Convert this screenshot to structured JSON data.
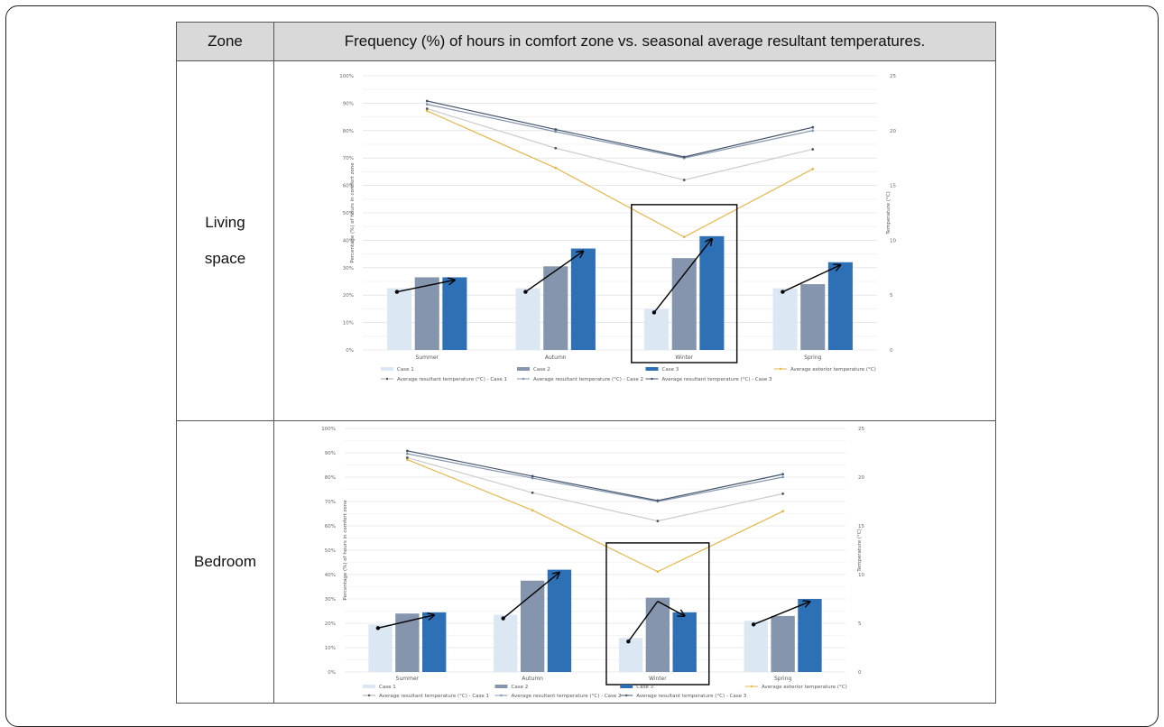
{
  "header": {
    "zone": "Zone",
    "description": "Frequency (%) of hours in comfort zone vs. seasonal average resultant temperatures."
  },
  "rows": [
    {
      "zone_lines": [
        "Living",
        "space"
      ]
    },
    {
      "zone_lines": [
        "Bedroom"
      ]
    }
  ],
  "chart_data": [
    {
      "type": "bar",
      "categories": [
        "Summer",
        "Autumn",
        "Winter",
        "Spring"
      ],
      "ylabel": "Percentage (%) of hours in comfort zone",
      "y2label": "Temperature (°C)",
      "ylim": [
        0,
        100
      ],
      "y2lim": [
        0,
        25
      ],
      "yticks": [
        "0%",
        "10%",
        "20%",
        "30%",
        "40%",
        "50%",
        "60%",
        "70%",
        "80%",
        "90%",
        "100%"
      ],
      "y2ticks": [
        "0",
        "5",
        "10",
        "15",
        "20",
        "25"
      ],
      "grid": true,
      "series": [
        {
          "name": "Case 1",
          "kind": "bar",
          "values": [
            22.5,
            22.5,
            15,
            22.5
          ],
          "color": "#dce7f4"
        },
        {
          "name": "Case 2",
          "kind": "bar",
          "values": [
            26.5,
            30.5,
            33.5,
            24
          ],
          "color": "#8595ad"
        },
        {
          "name": "Case 3",
          "kind": "bar",
          "values": [
            26.5,
            37,
            41.5,
            32
          ],
          "color": "#2e70b6"
        },
        {
          "name": "Average exterior temperature (°C)",
          "kind": "line",
          "axis": "right",
          "values": [
            21.8,
            16.6,
            10.3,
            16.5
          ],
          "color": "#e4b84d"
        },
        {
          "name": "Average resultant temperature (°C) - Case 1",
          "kind": "line",
          "axis": "right",
          "values": [
            22,
            18.4,
            15.5,
            18.3
          ],
          "color": "#cccccc"
        },
        {
          "name": "Average resultant temperature (°C) - Case 2",
          "kind": "line",
          "axis": "right",
          "values": [
            22.4,
            19.9,
            17.5,
            20
          ],
          "color": "#8595ad"
        },
        {
          "name": "Average resultant temperature (°C) - Case 3",
          "kind": "line",
          "axis": "right",
          "values": [
            22.7,
            20.1,
            17.6,
            20.3
          ],
          "color": "#44546a"
        }
      ],
      "highlight_category": "Winter"
    },
    {
      "type": "bar",
      "categories": [
        "Summer",
        "Autumn",
        "Winter",
        "Spring"
      ],
      "ylabel": "Percentage (%) of hours in comfort zone",
      "y2label": "Temperature (°C)",
      "ylim": [
        0,
        100
      ],
      "y2lim": [
        0,
        25
      ],
      "yticks": [
        "0%",
        "10%",
        "20%",
        "30%",
        "40%",
        "50%",
        "60%",
        "70%",
        "80%",
        "90%",
        "100%"
      ],
      "y2ticks": [
        "0",
        "5",
        "10",
        "15",
        "20",
        "25"
      ],
      "grid": true,
      "series": [
        {
          "name": "Case 1",
          "kind": "bar",
          "values": [
            19.5,
            23.5,
            14,
            21
          ],
          "color": "#dce7f4"
        },
        {
          "name": "Case 2",
          "kind": "bar",
          "values": [
            24,
            37.5,
            30.5,
            23
          ],
          "color": "#8595ad"
        },
        {
          "name": "Case 3",
          "kind": "bar",
          "values": [
            24.5,
            42,
            24.5,
            30
          ],
          "color": "#2e70b6"
        },
        {
          "name": "Average exterior temperature (°C)",
          "kind": "line",
          "axis": "right",
          "values": [
            21.8,
            16.6,
            10.3,
            16.5
          ],
          "color": "#e4b84d"
        },
        {
          "name": "Average resultant temperature (°C) - Case 1",
          "kind": "line",
          "axis": "right",
          "values": [
            22,
            18.4,
            15.5,
            18.3
          ],
          "color": "#cccccc"
        },
        {
          "name": "Average resultant temperature (°C) - Case 2",
          "kind": "line",
          "axis": "right",
          "values": [
            22.4,
            19.9,
            17.5,
            20
          ],
          "color": "#8595ad"
        },
        {
          "name": "Average resultant temperature (°C) - Case 3",
          "kind": "line",
          "axis": "right",
          "values": [
            22.7,
            20.1,
            17.6,
            20.3
          ],
          "color": "#44546a"
        }
      ],
      "highlight_category": "Winter"
    }
  ]
}
